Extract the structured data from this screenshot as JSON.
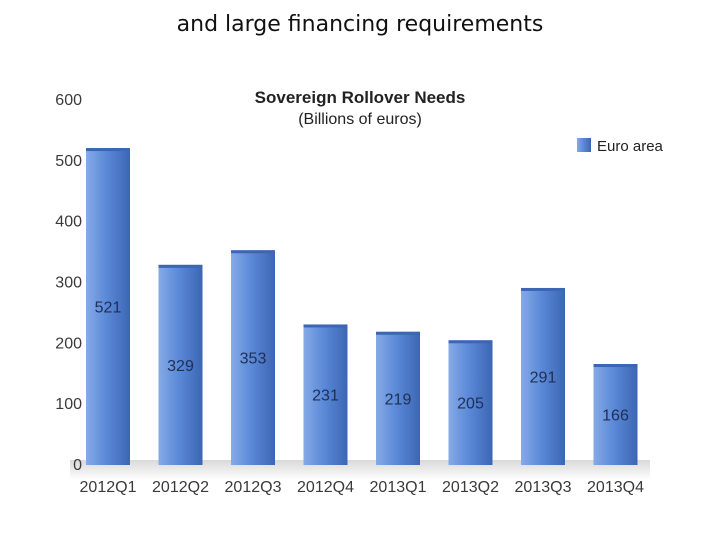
{
  "slide": {
    "title": "and large financing requirements"
  },
  "colors": {
    "bar": "#5b8ad8",
    "bar_dark": "#3c66b3",
    "bar_light": "#86aae6"
  },
  "chart_data": {
    "type": "bar",
    "title": "Sovereign Rollover Needs",
    "subtitle": "(Billions of euros)",
    "categories": [
      "2012Q1",
      "2012Q2",
      "2012Q3",
      "2012Q4",
      "2013Q1",
      "2013Q2",
      "2013Q3",
      "2013Q4"
    ],
    "series": [
      {
        "name": "Euro area",
        "values": [
          521,
          329,
          353,
          231,
          219,
          205,
          291,
          166
        ]
      }
    ],
    "ylim": [
      0,
      600
    ],
    "yticks": [
      0,
      100,
      200,
      300,
      400,
      500,
      600
    ],
    "grid": false,
    "legend": "top-right",
    "xlabel": "",
    "ylabel": ""
  }
}
